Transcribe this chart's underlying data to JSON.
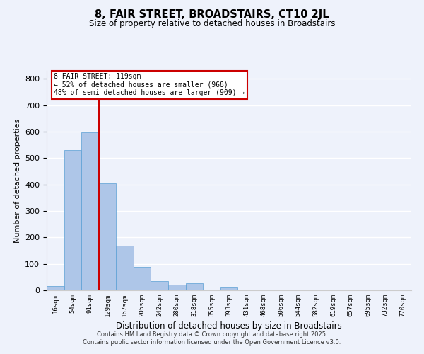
{
  "title": "8, FAIR STREET, BROADSTAIRS, CT10 2JL",
  "subtitle": "Size of property relative to detached houses in Broadstairs",
  "xlabel": "Distribution of detached houses by size in Broadstairs",
  "ylabel": "Number of detached properties",
  "bar_labels": [
    "16sqm",
    "54sqm",
    "91sqm",
    "129sqm",
    "167sqm",
    "205sqm",
    "242sqm",
    "280sqm",
    "318sqm",
    "355sqm",
    "393sqm",
    "431sqm",
    "468sqm",
    "506sqm",
    "544sqm",
    "582sqm",
    "619sqm",
    "657sqm",
    "695sqm",
    "732sqm",
    "770sqm"
  ],
  "bar_values": [
    15,
    530,
    597,
    403,
    168,
    88,
    35,
    22,
    27,
    2,
    12,
    0,
    2,
    0,
    0,
    0,
    0,
    0,
    0,
    0,
    0
  ],
  "bar_color": "#aec6e8",
  "bar_edge_color": "#5a9fd4",
  "vline_x": 2.5,
  "vline_color": "#cc0000",
  "ylim": [
    0,
    830
  ],
  "yticks": [
    0,
    100,
    200,
    300,
    400,
    500,
    600,
    700,
    800
  ],
  "annotation_title": "8 FAIR STREET: 119sqm",
  "annotation_line1": "← 52% of detached houses are smaller (968)",
  "annotation_line2": "48% of semi-detached houses are larger (909) →",
  "bg_color": "#eef2fb",
  "grid_color": "#ffffff",
  "footer_line1": "Contains HM Land Registry data © Crown copyright and database right 2025.",
  "footer_line2": "Contains public sector information licensed under the Open Government Licence v3.0."
}
